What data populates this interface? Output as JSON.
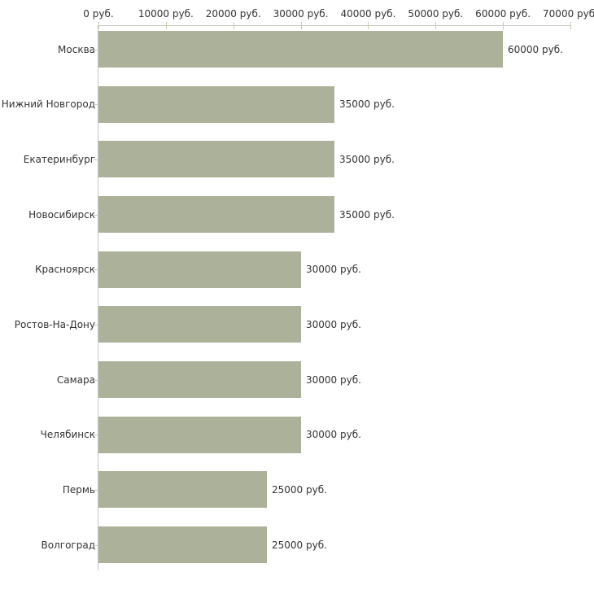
{
  "chart_data": {
    "type": "bar",
    "orientation": "horizontal",
    "title": "",
    "categories": [
      "Москва",
      "Нижний Новгород",
      "Екатеринбург",
      "Новосибирск",
      "Красноярск",
      "Ростов-На-Дону",
      "Самара",
      "Челябинск",
      "Пермь",
      "Волгоград"
    ],
    "values": [
      60000,
      35000,
      35000,
      35000,
      30000,
      30000,
      30000,
      30000,
      25000,
      25000
    ],
    "value_labels": [
      "60000 руб.",
      "35000 руб.",
      "35000 руб.",
      "35000 руб.",
      "30000 руб.",
      "30000 руб.",
      "30000 руб.",
      "30000 руб.",
      "25000 руб.",
      "25000 руб."
    ],
    "x_axis": {
      "position": "top",
      "min": 0,
      "max": 70000,
      "ticks": [
        0,
        10000,
        20000,
        30000,
        40000,
        50000,
        60000,
        70000
      ],
      "tick_labels": [
        "0 руб.",
        "10000 руб.",
        "20000 руб.",
        "30000 руб.",
        "40000 руб.",
        "50000 руб.",
        "60000 руб.",
        "70000 руб."
      ]
    },
    "grid": false,
    "legend": false,
    "colors": {
      "bar": "#acb299",
      "axis_line": "#c6c6c6",
      "tick_mark": "#c9cda8",
      "text": "#333333",
      "background": "#ffffff"
    }
  }
}
